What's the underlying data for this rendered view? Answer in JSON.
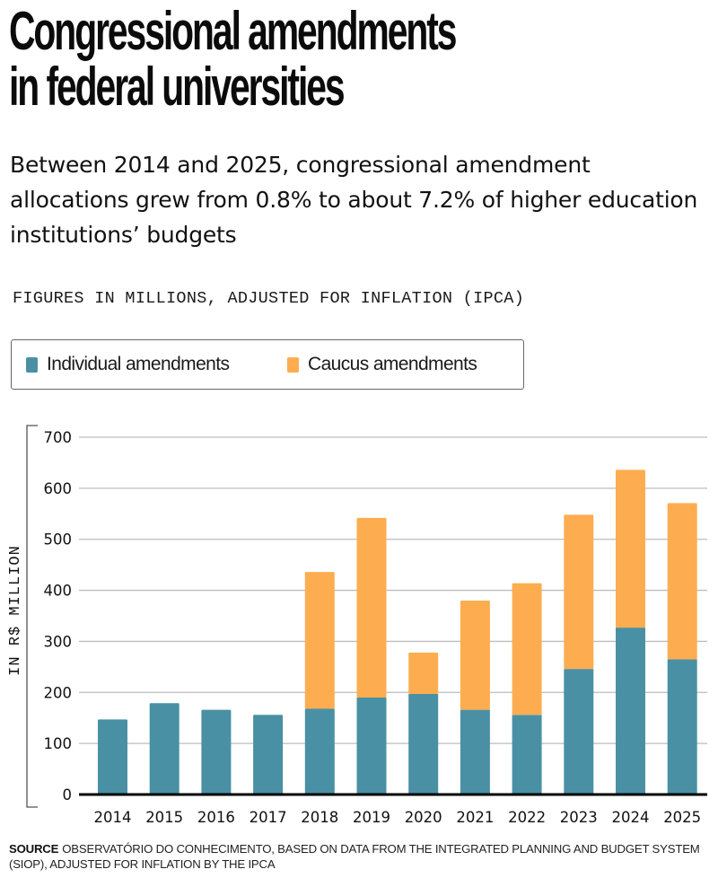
{
  "header": {
    "title_line1": "Congressional amendments",
    "title_line2": "in federal universities",
    "subtitle": "Between 2014 and 2025, congressional amendment allocations grew from 0.8% to about 7.2% of higher education institutions’ budgets",
    "note": "FIGURES IN MILLIONS, ADJUSTED FOR INFLATION (IPCA)"
  },
  "legend": [
    {
      "label": "Individual amendments",
      "color": "#4a90a4"
    },
    {
      "label": "Caucus amendments",
      "color": "#fdad50"
    }
  ],
  "footer": {
    "source_label": "SOURCE",
    "source_text": "OBSERVATÓRIO DO CONHECIMENTO, BASED ON DATA FROM THE INTEGRATED PLANNING AND BUDGET SYSTEM (SIOP), ADJUSTED FOR INFLATION BY THE IPCA"
  },
  "chart_data": {
    "type": "bar",
    "stacked": true,
    "title": "Congressional amendments in federal universities",
    "xlabel": "",
    "ylabel": "IN R$ MILLION",
    "categories": [
      "2014",
      "2015",
      "2016",
      "2017",
      "2018",
      "2019",
      "2020",
      "2021",
      "2022",
      "2023",
      "2024",
      "2025"
    ],
    "series": [
      {
        "name": "Individual amendments",
        "color": "#4a90a4",
        "values": [
          147,
          179,
          166,
          156,
          168,
          190,
          197,
          166,
          156,
          246,
          327,
          265
        ]
      },
      {
        "name": "Caucus amendments",
        "color": "#fdad50",
        "values": [
          0,
          0,
          0,
          0,
          268,
          352,
          81,
          214,
          258,
          302,
          309,
          306
        ]
      }
    ],
    "ylim": [
      0,
      700
    ],
    "yticks": [
      0,
      100,
      200,
      300,
      400,
      500,
      600,
      700
    ],
    "grid": true,
    "legend_position": "top-left"
  }
}
